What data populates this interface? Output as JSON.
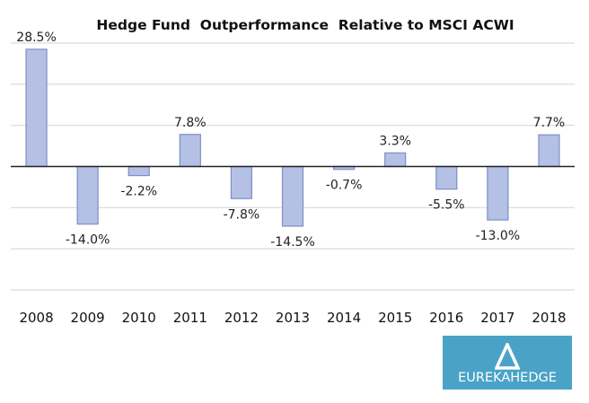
{
  "chart_data": {
    "type": "bar",
    "title": "Hedge Fund  Outperformance  Relative to MSCI ACWI",
    "xlabel": "",
    "ylabel": "",
    "categories": [
      "2008",
      "2009",
      "2010",
      "2011",
      "2012",
      "2013",
      "2014",
      "2015",
      "2016",
      "2017",
      "2018"
    ],
    "values": [
      28.5,
      -14.0,
      -2.2,
      7.8,
      -7.8,
      -14.5,
      -0.7,
      3.3,
      -5.5,
      -13.0,
      7.7
    ],
    "data_labels": [
      "28.5%",
      "-14.0%",
      "-2.2%",
      "7.8%",
      "-7.8%",
      "-14.5%",
      "-0.7%",
      "3.3%",
      "-5.5%",
      "-13.0%",
      "7.7%"
    ],
    "ylim": [
      -30,
      30
    ],
    "ygrid_step": 10,
    "grid": true,
    "y_tick_labels_shown": false,
    "legend": "none",
    "colors": {
      "bar_fill": "#b4c0e4",
      "bar_stroke": "#7d8fc6",
      "zero_line": "#222222",
      "grid": "#d9d9d9"
    }
  },
  "logo": {
    "text": "EUREKAHEDGE",
    "background": "#4aa3c7"
  }
}
